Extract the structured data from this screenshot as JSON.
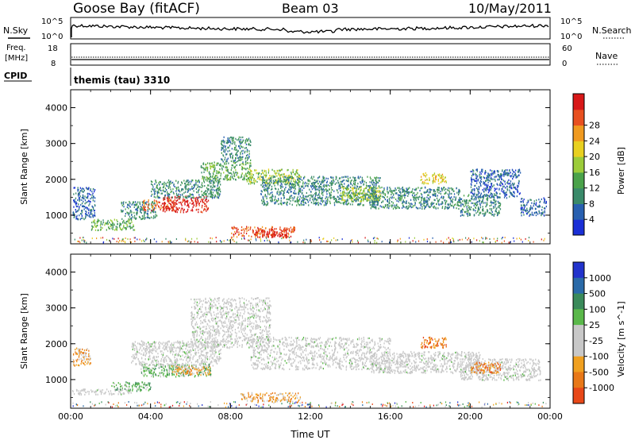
{
  "header": {
    "station": "Goose Bay (fitACF)",
    "beam": "Beam 03",
    "date": "10/May/2011"
  },
  "top_panels": {
    "nsky_label": "N.Sky",
    "nsky_ticks": [
      "10^5",
      "10^0"
    ],
    "nsearch_label": "N.Search",
    "nsearch_ticks": [
      "10^5",
      "10^0"
    ],
    "freq_label_1": "Freq.",
    "freq_label_2": "[MHz]",
    "freq_ticks": [
      "18",
      "8"
    ],
    "nave_label": "Nave",
    "nave_ticks": [
      "60",
      "0"
    ],
    "cpid_label": "CPID",
    "cpid_value": "themis (tau) 3310"
  },
  "colors": {
    "power_scale": [
      "#1a2fd6",
      "#2860b0",
      "#3a8a6a",
      "#4aa24a",
      "#9ccc3a",
      "#e8d020",
      "#f09a20",
      "#e85020",
      "#d81818"
    ],
    "velocity_scale": [
      "#2233cc",
      "#2a6aa8",
      "#3a8a5a",
      "#5ab84a",
      "#c8c8c8",
      "#c8c8c8",
      "#f0a020",
      "#e87818",
      "#e84818",
      "#e01818"
    ]
  },
  "chart_data": [
    {
      "type": "heatmap",
      "title": "Power",
      "ylabel": "Slant Range [km]",
      "xlabel": "",
      "x_ticks": [
        "00:00",
        "04:00",
        "08:00",
        "12:00",
        "16:00",
        "20:00",
        "00:00"
      ],
      "y_ticks": [
        "1000",
        "2000",
        "3000",
        "4000"
      ],
      "ylim": [
        200,
        4500
      ],
      "xlim_hours": [
        0,
        24
      ],
      "colorbar_label": "Power [dB]",
      "colorbar_ticks": [
        "4",
        "8",
        "12",
        "16",
        "20",
        "24",
        "28"
      ],
      "regions": [
        {
          "t0": 1.0,
          "t1": 3.2,
          "r0": 600,
          "r1": 900,
          "level": 3
        },
        {
          "t0": 2.5,
          "t1": 4.3,
          "r0": 900,
          "r1": 1400,
          "level": 2
        },
        {
          "t0": 3.6,
          "t1": 5.2,
          "r0": 1150,
          "r1": 1450,
          "level": 7
        },
        {
          "t0": 4.6,
          "t1": 6.9,
          "r0": 1100,
          "r1": 1550,
          "level": 8
        },
        {
          "t0": 4.0,
          "t1": 7.5,
          "r0": 1500,
          "r1": 2000,
          "level": 2
        },
        {
          "t0": 6.5,
          "t1": 9.0,
          "r0": 2000,
          "r1": 2500,
          "level": 3
        },
        {
          "t0": 7.5,
          "t1": 9.0,
          "r0": 2500,
          "r1": 3200,
          "level": 2
        },
        {
          "t0": 8.8,
          "t1": 11.5,
          "r0": 1900,
          "r1": 2300,
          "level": 4
        },
        {
          "t0": 9.5,
          "t1": 15.5,
          "r0": 1300,
          "r1": 2100,
          "level": 2
        },
        {
          "t0": 13.5,
          "t1": 15.5,
          "r0": 1400,
          "r1": 1800,
          "level": 4
        },
        {
          "t0": 15.0,
          "t1": 19.5,
          "r0": 1200,
          "r1": 1800,
          "level": 2
        },
        {
          "t0": 17.5,
          "t1": 18.8,
          "r0": 1900,
          "r1": 2200,
          "level": 5
        },
        {
          "t0": 19.5,
          "t1": 21.5,
          "r0": 1000,
          "r1": 1600,
          "level": 2
        },
        {
          "t0": 20.0,
          "t1": 22.5,
          "r0": 1500,
          "r1": 2300,
          "level": 1
        },
        {
          "t0": 8.0,
          "t1": 11.2,
          "r0": 400,
          "r1": 700,
          "level": 7
        },
        {
          "t0": 9.2,
          "t1": 10.8,
          "r0": 400,
          "r1": 600,
          "level": 8
        },
        {
          "t0": 0.1,
          "t1": 1.2,
          "r0": 900,
          "r1": 1800,
          "level": 1
        },
        {
          "t0": 22.5,
          "t1": 23.8,
          "r0": 1000,
          "r1": 1500,
          "level": 1
        }
      ]
    },
    {
      "type": "heatmap",
      "title": "Velocity",
      "ylabel": "Slant Range [km]",
      "xlabel": "Time UT",
      "x_ticks": [
        "00:00",
        "04:00",
        "08:00",
        "12:00",
        "16:00",
        "20:00",
        "00:00"
      ],
      "y_ticks": [
        "1000",
        "2000",
        "3000",
        "4000"
      ],
      "ylim": [
        200,
        4500
      ],
      "xlim_hours": [
        0,
        24
      ],
      "colorbar_label": "Velocity [m s^-1]",
      "colorbar_ticks": [
        "1000",
        "500",
        "100",
        "25",
        "-25",
        "-100",
        "-500",
        "-1000"
      ],
      "regions": [
        {
          "t0": 0.0,
          "t1": 3.0,
          "r0": 600,
          "r1": 750,
          "level": 4
        },
        {
          "t0": 2.0,
          "t1": 4.0,
          "r0": 700,
          "r1": 950,
          "level": 3
        },
        {
          "t0": 3.5,
          "t1": 7.0,
          "r0": 1100,
          "r1": 1450,
          "level": 3
        },
        {
          "t0": 5.0,
          "t1": 7.0,
          "r0": 1150,
          "r1": 1400,
          "level": 6
        },
        {
          "t0": 3.0,
          "t1": 7.5,
          "r0": 1400,
          "r1": 2100,
          "level": 4
        },
        {
          "t0": 6.0,
          "t1": 10.0,
          "r0": 1900,
          "r1": 3300,
          "level": 4
        },
        {
          "t0": 9.0,
          "t1": 16.0,
          "r0": 1300,
          "r1": 2200,
          "level": 4
        },
        {
          "t0": 15.0,
          "t1": 20.5,
          "r0": 1200,
          "r1": 1800,
          "level": 4
        },
        {
          "t0": 19.5,
          "t1": 23.5,
          "r0": 1000,
          "r1": 1600,
          "level": 4
        },
        {
          "t0": 20.0,
          "t1": 21.5,
          "r0": 1200,
          "r1": 1500,
          "level": 7
        },
        {
          "t0": 8.5,
          "t1": 11.5,
          "r0": 400,
          "r1": 650,
          "level": 6
        },
        {
          "t0": 17.5,
          "t1": 18.8,
          "r0": 1900,
          "r1": 2200,
          "level": 7
        },
        {
          "t0": 0.1,
          "t1": 1.0,
          "r0": 1400,
          "r1": 1900,
          "level": 6
        }
      ]
    }
  ]
}
